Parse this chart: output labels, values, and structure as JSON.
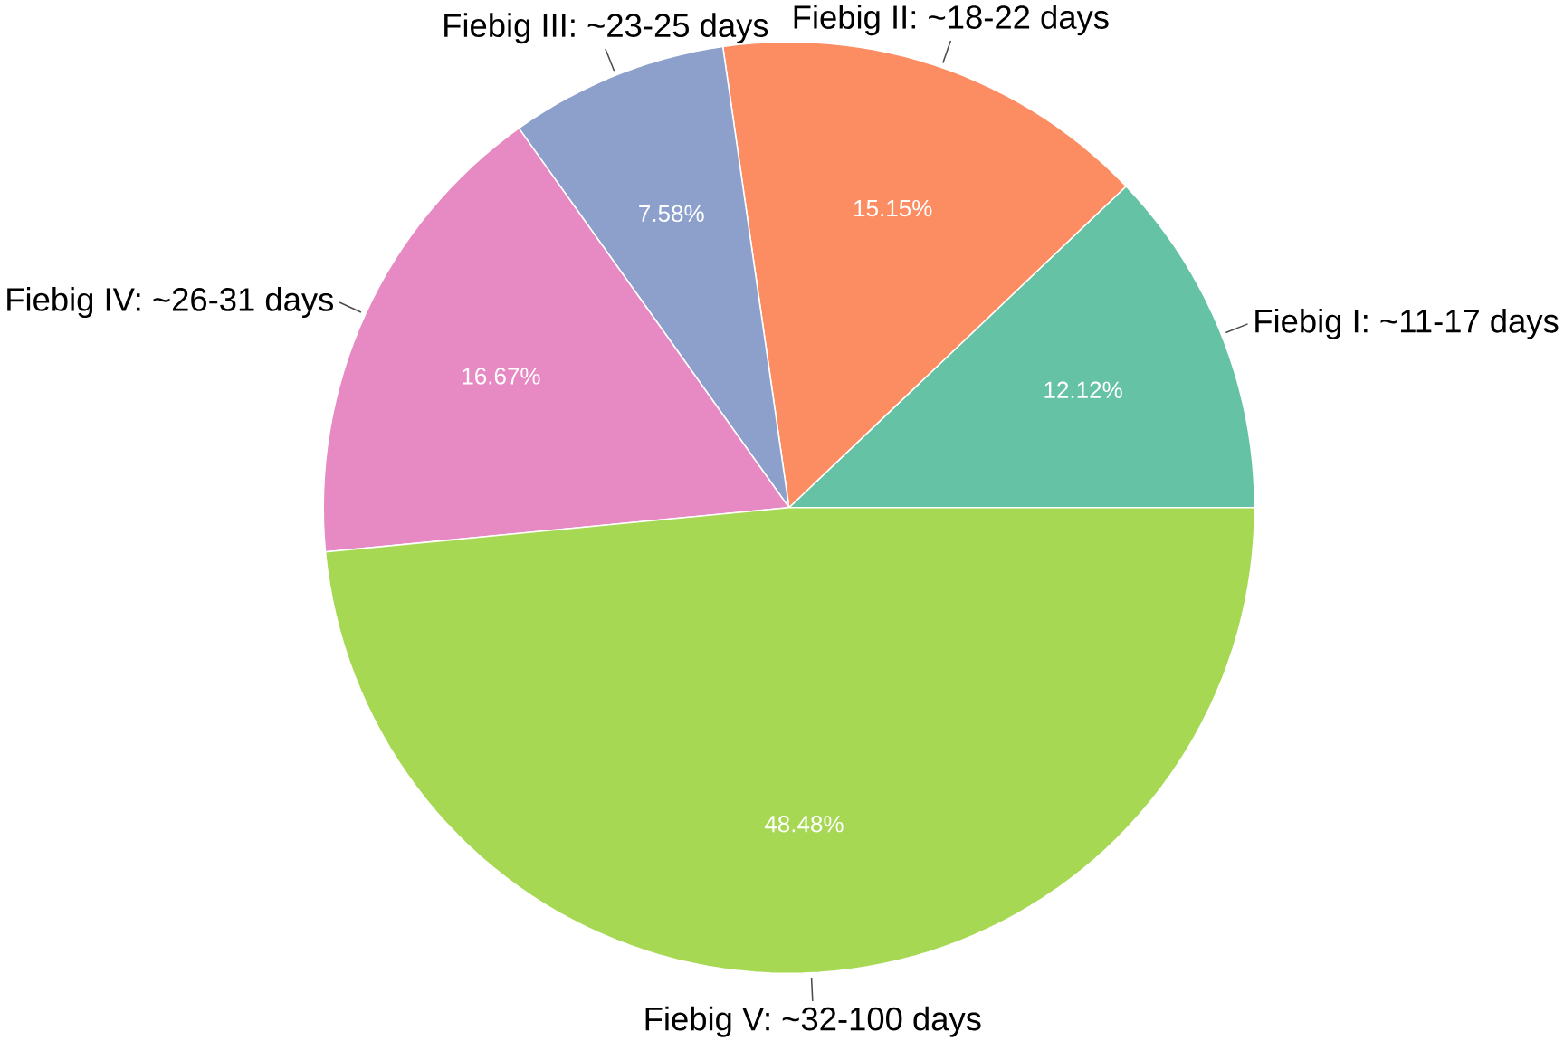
{
  "chart_data": {
    "type": "pie",
    "categories": [
      "Fiebig I: ~11-17 days",
      "Fiebig II: ~18-22 days",
      "Fiebig III: ~23-25 days",
      "Fiebig IV: ~26-31 days",
      "Fiebig V: ~32-100 days"
    ],
    "values": [
      12.12,
      15.15,
      7.58,
      16.67,
      48.48
    ],
    "value_labels": [
      "12.12%",
      "15.15%",
      "7.58%",
      "16.67%",
      "48.48%"
    ],
    "colors": [
      "#66c2a5",
      "#fc8d62",
      "#8da0cb",
      "#e78ac3",
      "#a6d854"
    ]
  }
}
